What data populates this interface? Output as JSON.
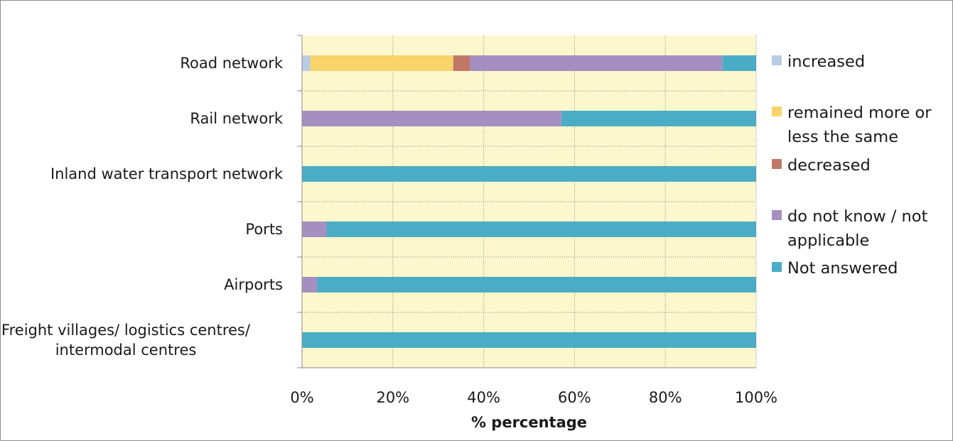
{
  "chart_data": {
    "type": "bar",
    "orientation": "horizontal",
    "stacked": true,
    "percent": true,
    "title": "",
    "xlabel": "% percentage",
    "ylabel": "",
    "xlim": [
      0,
      100
    ],
    "x_ticks": [
      "0%",
      "20%",
      "40%",
      "60%",
      "80%",
      "100%"
    ],
    "grid": true,
    "legend_position": "right",
    "plot_background": "#fdf7cd",
    "categories": [
      [
        "Road network"
      ],
      [
        "Rail network"
      ],
      [
        "Inland water transport network"
      ],
      [
        "Ports"
      ],
      [
        "Airports"
      ],
      [
        "Freight villages/ logistics centres/",
        "intermodal centres"
      ]
    ],
    "series": [
      {
        "name": [
          "increased"
        ],
        "color": "#b8cce4",
        "values": [
          1.8,
          0,
          0,
          0,
          0,
          0
        ]
      },
      {
        "name": [
          "remained more or",
          "less the same"
        ],
        "color": "#f8d46a",
        "values": [
          31.5,
          0,
          0,
          0,
          0,
          0
        ]
      },
      {
        "name": [
          "decreased"
        ],
        "color": "#c0786a",
        "values": [
          3.7,
          0,
          0,
          0,
          0,
          0
        ]
      },
      {
        "name": [
          "do not know / not",
          "applicable"
        ],
        "color": "#a48fc0",
        "values": [
          55.6,
          57.1,
          0,
          5.4,
          3.3,
          0
        ]
      },
      {
        "name": [
          "Not answered"
        ],
        "color": "#4bacc6",
        "values": [
          7.4,
          42.9,
          100,
          94.6,
          96.7,
          100
        ]
      }
    ]
  }
}
